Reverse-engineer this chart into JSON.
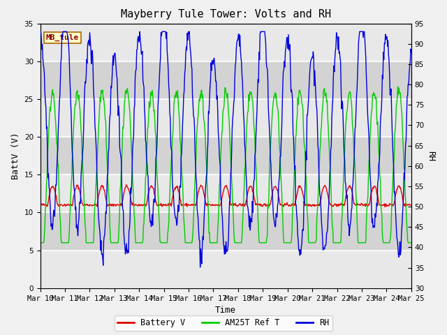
{
  "title": "Mayberry Tule Tower: Volts and RH",
  "xlabel": "Time",
  "ylabel_left": "BattV (V)",
  "ylabel_right": "RH",
  "station_label": "MB_tule",
  "ylim_left": [
    0,
    35
  ],
  "ylim_right": [
    30,
    95
  ],
  "yticks_left": [
    0,
    5,
    10,
    15,
    20,
    25,
    30,
    35
  ],
  "yticks_right": [
    30,
    35,
    40,
    45,
    50,
    55,
    60,
    65,
    70,
    75,
    80,
    85,
    90,
    95
  ],
  "xtick_labels": [
    "Mar 10",
    "Mar 11",
    "Mar 12",
    "Mar 13",
    "Mar 14",
    "Mar 15",
    "Mar 16",
    "Mar 17",
    "Mar 18",
    "Mar 19",
    "Mar 20",
    "Mar 21",
    "Mar 22",
    "Mar 23",
    "Mar 24",
    "Mar 25"
  ],
  "color_battery": "#dd0000",
  "color_am25t": "#00cc00",
  "color_rh": "#0000dd",
  "plot_bg_color": "#d8d8d8",
  "fig_bg_color": "#f0f0f0",
  "grid_color": "#ffffff",
  "legend_labels": [
    "Battery V",
    "AM25T Ref T",
    "RH"
  ],
  "title_fontsize": 11,
  "label_fontsize": 9,
  "tick_fontsize": 7.5
}
